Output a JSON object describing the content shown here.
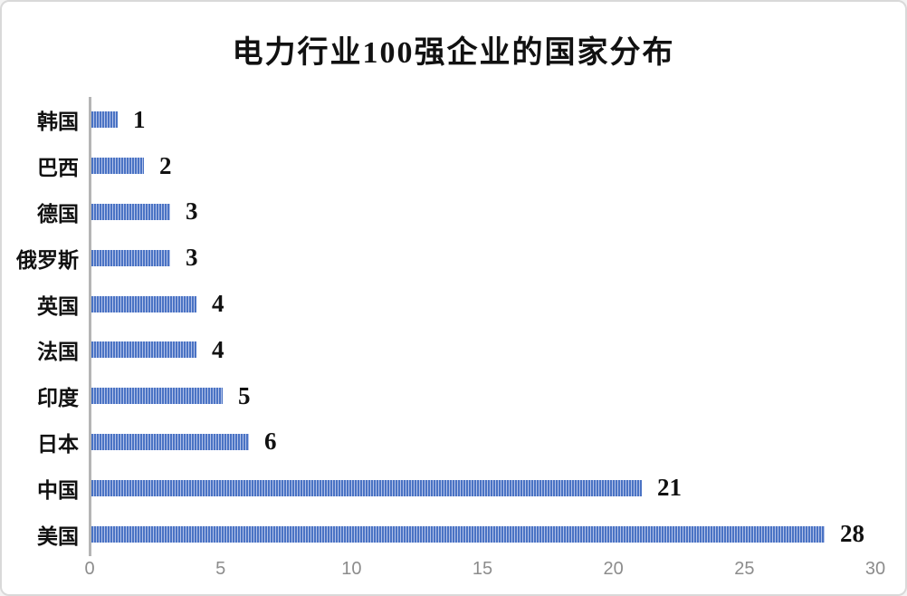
{
  "chart_data": {
    "type": "bar",
    "orientation": "horizontal",
    "title": "电力行业100强企业的国家分布",
    "categories": [
      "韩国",
      "巴西",
      "德国",
      "俄罗斯",
      "英国",
      "法国",
      "印度",
      "日本",
      "中国",
      "美国"
    ],
    "values": [
      1,
      2,
      3,
      3,
      4,
      4,
      5,
      6,
      21,
      28
    ],
    "xlabel": "",
    "ylabel": "",
    "xlim": [
      0,
      30
    ],
    "x_ticks": [
      0,
      5,
      10,
      15,
      20,
      25,
      30
    ],
    "grid": false,
    "legend": "none",
    "data_labels_shown": true,
    "colors": {
      "bar_stripe_dark": "#4a73c4",
      "bar_stripe_light": "#b3c2e8",
      "axis_line": "#b5b5b5",
      "tick_text": "#8c8c8c",
      "label_text": "#111111",
      "title_text": "#111111",
      "frame_border": "#d9d9d9",
      "background": "#ffffff"
    }
  }
}
